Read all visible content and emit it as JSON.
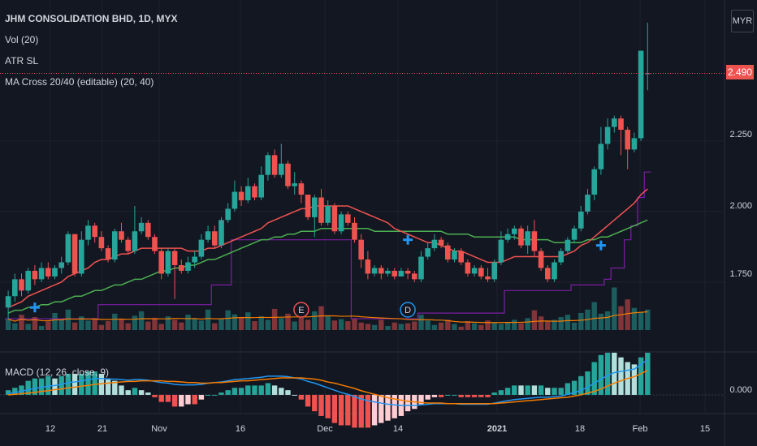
{
  "header": {
    "title": "JHM CONSOLIDATION BHD, 1D, MYX",
    "indicators": [
      "Vol (20)",
      "ATR SL",
      "MA Cross 20/40 (editable) (20, 40)"
    ]
  },
  "currency": "MYR",
  "last_price": "2.490",
  "macd_legend": "MACD (12, 26, close, 9)",
  "macd_zero": "0.000",
  "colors": {
    "up": "#26a69a",
    "down": "#ef5350",
    "ma20": "#ef5350",
    "ma40": "#4caf50",
    "atr": "#7b1fa2",
    "macd": "#2196f3",
    "signal": "#f57c00"
  },
  "chart_data": {
    "type": "candlestick",
    "title": "JHM CONSOLIDATION BHD, 1D, MYX",
    "y_ticks": [
      "1.750",
      "2.000",
      "2.250",
      "2.490"
    ],
    "ylim": [
      1.58,
      2.75
    ],
    "x_ticks": [
      "12",
      "21",
      "Nov",
      "16",
      "Dec",
      "14",
      "2021",
      "18",
      "Feb",
      "15"
    ],
    "candles": [
      [
        1.66,
        1.7,
        1.62,
        1.72
      ],
      [
        1.7,
        1.76,
        1.68,
        1.78
      ],
      [
        1.76,
        1.72,
        1.7,
        1.78
      ],
      [
        1.72,
        1.79,
        1.71,
        1.8
      ],
      [
        1.79,
        1.76,
        1.74,
        1.81
      ],
      [
        1.76,
        1.8,
        1.75,
        1.82
      ],
      [
        1.8,
        1.77,
        1.76,
        1.82
      ],
      [
        1.77,
        1.8,
        1.76,
        1.81
      ],
      [
        1.8,
        1.82,
        1.78,
        1.84
      ],
      [
        1.82,
        1.92,
        1.81,
        1.93
      ],
      [
        1.92,
        1.78,
        1.77,
        1.92
      ],
      [
        1.78,
        1.9,
        1.77,
        1.93
      ],
      [
        1.9,
        1.95,
        1.88,
        1.97
      ],
      [
        1.95,
        1.91,
        1.89,
        1.96
      ],
      [
        1.91,
        1.87,
        1.86,
        1.93
      ],
      [
        1.87,
        1.83,
        1.82,
        1.88
      ],
      [
        1.83,
        1.93,
        1.82,
        1.94
      ],
      [
        1.93,
        1.9,
        1.89,
        1.96
      ],
      [
        1.9,
        1.86,
        1.85,
        1.91
      ],
      [
        1.86,
        1.93,
        1.85,
        2.02
      ],
      [
        1.93,
        1.96,
        1.92,
        1.98
      ],
      [
        1.96,
        1.91,
        1.9,
        1.97
      ],
      [
        1.91,
        1.86,
        1.85,
        1.92
      ],
      [
        1.86,
        1.78,
        1.76,
        1.87
      ],
      [
        1.78,
        1.86,
        1.77,
        1.87
      ],
      [
        1.86,
        1.81,
        1.69,
        1.87
      ],
      [
        1.81,
        1.79,
        1.78,
        1.83
      ],
      [
        1.79,
        1.82,
        1.78,
        1.84
      ],
      [
        1.82,
        1.84,
        1.8,
        1.86
      ],
      [
        1.84,
        1.9,
        1.83,
        1.92
      ],
      [
        1.9,
        1.93,
        1.89,
        1.95
      ],
      [
        1.93,
        1.88,
        1.87,
        1.95
      ],
      [
        1.88,
        1.97,
        1.87,
        1.98
      ],
      [
        1.97,
        2.01,
        1.96,
        2.03
      ],
      [
        2.01,
        2.07,
        2.0,
        2.11
      ],
      [
        2.07,
        2.04,
        2.02,
        2.09
      ],
      [
        2.04,
        2.09,
        2.03,
        2.12
      ],
      [
        2.09,
        2.05,
        2.04,
        2.1
      ],
      [
        2.05,
        2.13,
        2.04,
        2.16
      ],
      [
        2.13,
        2.2,
        2.11,
        2.21
      ],
      [
        2.2,
        2.13,
        2.12,
        2.22
      ],
      [
        2.13,
        2.17,
        2.12,
        2.24
      ],
      [
        2.17,
        2.09,
        2.08,
        2.18
      ],
      [
        2.09,
        2.1,
        2.06,
        2.14
      ],
      [
        2.1,
        2.06,
        2.03,
        2.11
      ],
      [
        2.06,
        1.98,
        1.97,
        2.06
      ],
      [
        1.98,
        2.05,
        1.91,
        2.06
      ],
      [
        2.05,
        1.96,
        1.95,
        2.08
      ],
      [
        1.96,
        2.02,
        1.95,
        2.04
      ],
      [
        2.02,
        1.93,
        1.92,
        2.03
      ],
      [
        1.93,
        1.99,
        1.92,
        2.0
      ],
      [
        1.99,
        1.96,
        1.95,
        2.0
      ],
      [
        1.96,
        1.9,
        1.89,
        1.98
      ],
      [
        1.9,
        1.83,
        1.8,
        1.92
      ],
      [
        1.83,
        1.78,
        1.76,
        1.86
      ],
      [
        1.78,
        1.8,
        1.77,
        1.81
      ],
      [
        1.8,
        1.78,
        1.76,
        1.81
      ],
      [
        1.78,
        1.79,
        1.77,
        1.8
      ],
      [
        1.79,
        1.77,
        1.76,
        1.8
      ],
      [
        1.77,
        1.79,
        1.77,
        1.8
      ],
      [
        1.79,
        1.78,
        1.76,
        1.8
      ],
      [
        1.78,
        1.76,
        1.75,
        1.79
      ],
      [
        1.76,
        1.84,
        1.75,
        1.86
      ],
      [
        1.84,
        1.87,
        1.83,
        1.89
      ],
      [
        1.87,
        1.9,
        1.86,
        1.92
      ],
      [
        1.9,
        1.88,
        1.87,
        1.91
      ],
      [
        1.88,
        1.83,
        1.82,
        1.89
      ],
      [
        1.83,
        1.86,
        1.82,
        1.87
      ],
      [
        1.86,
        1.82,
        1.81,
        1.87
      ],
      [
        1.82,
        1.78,
        1.77,
        1.83
      ],
      [
        1.78,
        1.8,
        1.77,
        1.81
      ],
      [
        1.8,
        1.77,
        1.76,
        1.81
      ],
      [
        1.77,
        1.76,
        1.75,
        1.8
      ],
      [
        1.76,
        1.82,
        1.75,
        1.83
      ],
      [
        1.82,
        1.9,
        1.81,
        1.93
      ],
      [
        1.9,
        1.92,
        1.89,
        1.94
      ],
      [
        1.92,
        1.94,
        1.9,
        1.95
      ],
      [
        1.94,
        1.88,
        1.87,
        1.95
      ],
      [
        1.88,
        1.93,
        1.85,
        1.95
      ],
      [
        1.93,
        1.86,
        1.84,
        1.97
      ],
      [
        1.86,
        1.8,
        1.79,
        1.87
      ],
      [
        1.8,
        1.76,
        1.75,
        1.81
      ],
      [
        1.76,
        1.82,
        1.75,
        1.83
      ],
      [
        1.82,
        1.86,
        1.81,
        1.87
      ],
      [
        1.86,
        1.9,
        1.85,
        1.91
      ],
      [
        1.9,
        1.94,
        1.89,
        1.95
      ],
      [
        1.94,
        2.0,
        1.93,
        2.02
      ],
      [
        2.0,
        2.06,
        1.99,
        2.08
      ],
      [
        2.06,
        2.15,
        2.04,
        2.16
      ],
      [
        2.15,
        2.24,
        2.13,
        2.3
      ],
      [
        2.24,
        2.3,
        2.22,
        2.33
      ],
      [
        2.3,
        2.33,
        2.28,
        2.34
      ],
      [
        2.33,
        2.29,
        2.2,
        2.34
      ],
      [
        2.29,
        2.22,
        2.15,
        2.3
      ],
      [
        2.22,
        2.26,
        2.21,
        2.28
      ],
      [
        2.26,
        2.57,
        2.25,
        2.57
      ],
      [
        2.49,
        2.49,
        2.43,
        2.67
      ]
    ],
    "ma20": [
      1.66,
      1.67,
      1.68,
      1.7,
      1.71,
      1.72,
      1.73,
      1.74,
      1.75,
      1.77,
      1.78,
      1.79,
      1.8,
      1.82,
      1.83,
      1.83,
      1.84,
      1.85,
      1.85,
      1.86,
      1.87,
      1.87,
      1.87,
      1.87,
      1.87,
      1.87,
      1.87,
      1.86,
      1.86,
      1.86,
      1.87,
      1.87,
      1.88,
      1.89,
      1.9,
      1.91,
      1.92,
      1.93,
      1.94,
      1.96,
      1.97,
      1.98,
      1.99,
      2.0,
      2.01,
      2.01,
      2.02,
      2.02,
      2.02,
      2.02,
      2.02,
      2.02,
      2.01,
      2.0,
      1.99,
      1.98,
      1.97,
      1.96,
      1.94,
      1.93,
      1.92,
      1.91,
      1.9,
      1.89,
      1.89,
      1.88,
      1.87,
      1.86,
      1.86,
      1.85,
      1.84,
      1.83,
      1.82,
      1.82,
      1.82,
      1.83,
      1.84,
      1.84,
      1.84,
      1.84,
      1.84,
      1.84,
      1.84,
      1.84,
      1.85,
      1.86,
      1.88,
      1.89,
      1.91,
      1.93,
      1.95,
      1.97,
      1.99,
      2.01,
      2.03,
      2.06,
      2.08
    ],
    "ma40": [
      1.64,
      1.65,
      1.65,
      1.66,
      1.66,
      1.67,
      1.67,
      1.68,
      1.68,
      1.69,
      1.7,
      1.7,
      1.71,
      1.72,
      1.72,
      1.73,
      1.74,
      1.74,
      1.75,
      1.76,
      1.76,
      1.77,
      1.78,
      1.79,
      1.79,
      1.8,
      1.8,
      1.81,
      1.81,
      1.82,
      1.83,
      1.83,
      1.84,
      1.85,
      1.86,
      1.87,
      1.88,
      1.89,
      1.9,
      1.9,
      1.91,
      1.91,
      1.92,
      1.92,
      1.93,
      1.93,
      1.93,
      1.94,
      1.94,
      1.94,
      1.94,
      1.94,
      1.94,
      1.94,
      1.94,
      1.93,
      1.93,
      1.93,
      1.93,
      1.93,
      1.93,
      1.93,
      1.93,
      1.93,
      1.93,
      1.93,
      1.92,
      1.92,
      1.92,
      1.92,
      1.91,
      1.91,
      1.91,
      1.91,
      1.91,
      1.91,
      1.91,
      1.9,
      1.9,
      1.9,
      1.9,
      1.9,
      1.89,
      1.89,
      1.89,
      1.89,
      1.89,
      1.9,
      1.9,
      1.91,
      1.91,
      1.92,
      1.93,
      1.94,
      1.95,
      1.96,
      1.97
    ],
    "volume": [
      32,
      20,
      45,
      18,
      38,
      12,
      25,
      50,
      30,
      60,
      22,
      40,
      28,
      35,
      15,
      26,
      48,
      33,
      20,
      42,
      55,
      25,
      36,
      18,
      40,
      30,
      22,
      45,
      35,
      28,
      60,
      20,
      32,
      58,
      46,
      38,
      52,
      26,
      40,
      30,
      62,
      35,
      48,
      25,
      38,
      30,
      55,
      70,
      42,
      28,
      32,
      26,
      35,
      22,
      18,
      15,
      30,
      12,
      22,
      18,
      20,
      25,
      45,
      28,
      15,
      22,
      30,
      18,
      10,
      26,
      20,
      15,
      28,
      22,
      18,
      24,
      30,
      20,
      35,
      58,
      40,
      25,
      30,
      38,
      45,
      22,
      50,
      60,
      82,
      48,
      55,
      125,
      70,
      90,
      65,
      52,
      60
    ],
    "macd_line": [
      0.002,
      0.004,
      0.006,
      0.009,
      0.011,
      0.013,
      0.015,
      0.016,
      0.018,
      0.021,
      0.022,
      0.024,
      0.026,
      0.028,
      0.028,
      0.027,
      0.027,
      0.026,
      0.025,
      0.026,
      0.026,
      0.025,
      0.023,
      0.021,
      0.02,
      0.018,
      0.017,
      0.017,
      0.017,
      0.018,
      0.02,
      0.021,
      0.022,
      0.024,
      0.026,
      0.027,
      0.028,
      0.029,
      0.03,
      0.032,
      0.032,
      0.032,
      0.031,
      0.029,
      0.027,
      0.023,
      0.02,
      0.016,
      0.012,
      0.008,
      0.004,
      0.001,
      -0.003,
      -0.007,
      -0.01,
      -0.012,
      -0.014,
      -0.016,
      -0.017,
      -0.018,
      -0.018,
      -0.018,
      -0.017,
      -0.016,
      -0.015,
      -0.015,
      -0.015,
      -0.015,
      -0.016,
      -0.016,
      -0.016,
      -0.016,
      -0.016,
      -0.014,
      -0.012,
      -0.01,
      -0.008,
      -0.007,
      -0.006,
      -0.005,
      -0.004,
      -0.004,
      -0.003,
      -0.002,
      0.001,
      0.004,
      0.008,
      0.013,
      0.02,
      0.027,
      0.033,
      0.038,
      0.04,
      0.042,
      0.044,
      0.052,
      0.06
    ],
    "signal_line": [
      0.0,
      0.001,
      0.002,
      0.003,
      0.004,
      0.006,
      0.007,
      0.009,
      0.01,
      0.012,
      0.013,
      0.015,
      0.016,
      0.018,
      0.019,
      0.02,
      0.021,
      0.022,
      0.023,
      0.023,
      0.024,
      0.024,
      0.024,
      0.024,
      0.023,
      0.023,
      0.022,
      0.021,
      0.021,
      0.02,
      0.02,
      0.021,
      0.021,
      0.022,
      0.023,
      0.024,
      0.024,
      0.025,
      0.026,
      0.027,
      0.028,
      0.029,
      0.029,
      0.029,
      0.029,
      0.028,
      0.027,
      0.025,
      0.022,
      0.02,
      0.017,
      0.014,
      0.011,
      0.007,
      0.004,
      0.001,
      -0.002,
      -0.005,
      -0.007,
      -0.009,
      -0.011,
      -0.012,
      -0.013,
      -0.014,
      -0.014,
      -0.014,
      -0.015,
      -0.015,
      -0.015,
      -0.015,
      -0.015,
      -0.015,
      -0.015,
      -0.015,
      -0.014,
      -0.013,
      -0.012,
      -0.011,
      -0.01,
      -0.009,
      -0.008,
      -0.007,
      -0.006,
      -0.005,
      -0.004,
      -0.002,
      0.0,
      0.003,
      0.006,
      0.01,
      0.015,
      0.02,
      0.024,
      0.028,
      0.031,
      0.036,
      0.042
    ]
  }
}
